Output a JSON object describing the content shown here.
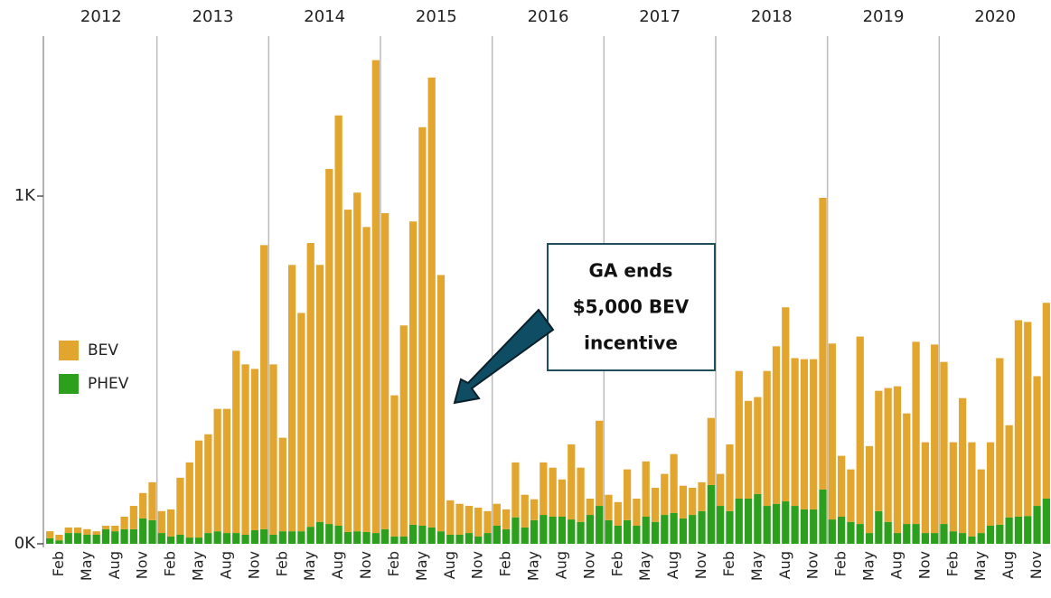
{
  "chart_data": {
    "type": "bar",
    "stacked": true,
    "years": [
      "2012",
      "2013",
      "2014",
      "2015",
      "2016",
      "2017",
      "2018",
      "2019",
      "2020"
    ],
    "categories": [
      null,
      "Feb",
      null,
      null,
      "May",
      null,
      null,
      "Aug",
      null,
      null,
      "Nov",
      null,
      null,
      "Feb",
      null,
      null,
      "May",
      null,
      null,
      "Aug",
      null,
      null,
      "Nov",
      null,
      null,
      "Feb",
      null,
      null,
      "May",
      null,
      null,
      "Aug",
      null,
      null,
      "Nov",
      null,
      null,
      "Feb",
      null,
      null,
      "May",
      null,
      null,
      "Aug",
      null,
      null,
      "Nov",
      null,
      null,
      "Feb",
      null,
      null,
      "May",
      null,
      null,
      "Aug",
      null,
      null,
      "Nov",
      null,
      null,
      "Feb",
      null,
      null,
      "May",
      null,
      null,
      "Aug",
      null,
      null,
      "Nov",
      null,
      null,
      "Feb",
      null,
      null,
      "May",
      null,
      null,
      "Aug",
      null,
      null,
      "Nov",
      null,
      null,
      "Feb",
      null,
      null,
      "May",
      null,
      null,
      "Aug",
      null,
      null,
      "Nov",
      null,
      null,
      "Feb",
      null,
      null,
      "May",
      null,
      null,
      "Aug",
      null,
      null,
      "Nov",
      null
    ],
    "series": [
      {
        "name": "BEV",
        "color": "#e2a52d",
        "values": [
          20,
          16,
          16,
          16,
          16,
          10,
          10,
          16,
          36,
          67,
          73,
          109,
          63,
          78,
          164,
          216,
          279,
          284,
          352,
          357,
          524,
          490,
          464,
          817,
          490,
          269,
          766,
          628,
          816,
          739,
          1021,
          1180,
          927,
          974,
          877,
          1360,
          909,
          406,
          607,
          872,
          1146,
          1294,
          737,
          99,
          89,
          78,
          83,
          63,
          63,
          57,
          158,
          94,
          60,
          151,
          141,
          107,
          216,
          156,
          47,
          245,
          73,
          68,
          146,
          78,
          159,
          98,
          118,
          169,
          94,
          78,
          83,
          193,
          92,
          192,
          367,
          281,
          279,
          388,
          453,
          558,
          425,
          432,
          432,
          839,
          506,
          175,
          151,
          539,
          250,
          346,
          385,
          422,
          318,
          524,
          261,
          542,
          466,
          256,
          388,
          271,
          183,
          240,
          479,
          265,
          565,
          558,
          373,
          563
        ]
      },
      {
        "name": "PHEV",
        "color": "#2ca01c",
        "values": [
          16,
          10,
          31,
          31,
          26,
          26,
          42,
          36,
          42,
          42,
          73,
          68,
          31,
          21,
          26,
          18,
          18,
          31,
          36,
          31,
          31,
          26,
          39,
          42,
          26,
          36,
          36,
          36,
          49,
          63,
          57,
          52,
          34,
          36,
          34,
          31,
          42,
          21,
          21,
          55,
          52,
          47,
          36,
          26,
          26,
          31,
          21,
          31,
          52,
          42,
          76,
          47,
          68,
          83,
          78,
          78,
          70,
          63,
          83,
          109,
          68,
          52,
          68,
          52,
          78,
          63,
          83,
          89,
          73,
          83,
          94,
          169,
          109,
          94,
          130,
          130,
          143,
          109,
          115,
          122,
          109,
          99,
          99,
          156,
          70,
          78,
          63,
          57,
          31,
          94,
          63,
          31,
          57,
          57,
          31,
          31,
          57,
          36,
          31,
          21,
          31,
          52,
          55,
          76,
          78,
          80,
          109,
          130
        ]
      }
    ],
    "ylim": [
      0,
      1460
    ],
    "yticks": [
      {
        "value": 0,
        "label": "0K"
      },
      {
        "value": 1000,
        "label": "1K"
      }
    ],
    "annotation": [
      "GA ends",
      "$5,000 BEV",
      "incentive"
    ]
  }
}
